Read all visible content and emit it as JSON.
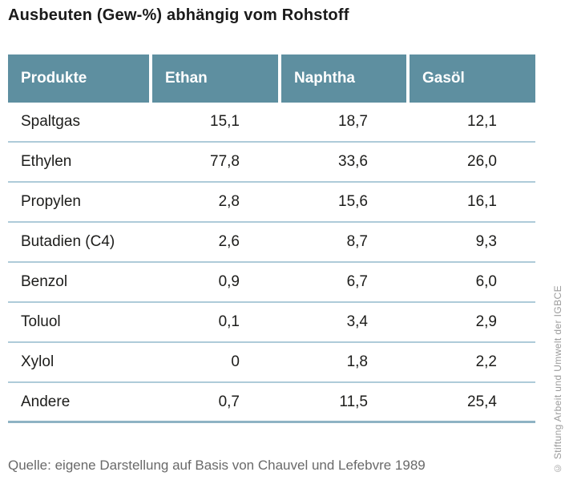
{
  "title": "Ausbeuten (Gew-%) abhängig vom Rohstoff",
  "source": "Quelle: eigene Darstellung auf Basis von Chauvel und Lefebvre 1989",
  "copyright": "© Stiftung Arbeit und Umwelt der IGBCE",
  "colors": {
    "header_bg": "#5E8FA0",
    "header_text": "#FFFFFF",
    "row_divider": "#AECBD9",
    "bottom_border": "#8FB3C4",
    "body_text": "#1D1D1B",
    "source_text": "#696969",
    "copyright_text": "#9B9B9B"
  },
  "table": {
    "columns": [
      "Produkte",
      "Ethan",
      "Naphtha",
      "Gasöl"
    ],
    "rows": [
      [
        "Spaltgas",
        "15,1",
        "18,7",
        "12,1"
      ],
      [
        "Ethylen",
        "77,8",
        "33,6",
        "26,0"
      ],
      [
        "Propylen",
        "2,8",
        "15,6",
        "16,1"
      ],
      [
        "Butadien (C4)",
        "2,6",
        "8,7",
        "9,3"
      ],
      [
        "Benzol",
        "0,9",
        "6,7",
        "6,0"
      ],
      [
        "Toluol",
        "0,1",
        "3,4",
        "2,9"
      ],
      [
        "Xylol",
        "0",
        "1,8",
        "2,2"
      ],
      [
        "Andere",
        "0,7",
        "11,5",
        "25,4"
      ]
    ]
  },
  "chart_data": {
    "type": "table",
    "title": "Ausbeuten (Gew-%) abhängig vom Rohstoff",
    "categories": [
      "Spaltgas",
      "Ethylen",
      "Propylen",
      "Butadien (C4)",
      "Benzol",
      "Toluol",
      "Xylol",
      "Andere"
    ],
    "series": [
      {
        "name": "Ethan",
        "values": [
          15.1,
          77.8,
          2.8,
          2.6,
          0.9,
          0.1,
          0,
          0.7
        ]
      },
      {
        "name": "Naphtha",
        "values": [
          18.7,
          33.6,
          15.6,
          8.7,
          6.7,
          3.4,
          1.8,
          11.5
        ]
      },
      {
        "name": "Gasöl",
        "values": [
          12.1,
          26.0,
          16.1,
          9.3,
          6.0,
          2.9,
          2.2,
          25.4
        ]
      }
    ],
    "unit": "Gew-%",
    "source": "Quelle: eigene Darstellung auf Basis von Chauvel und Lefebvre 1989"
  }
}
